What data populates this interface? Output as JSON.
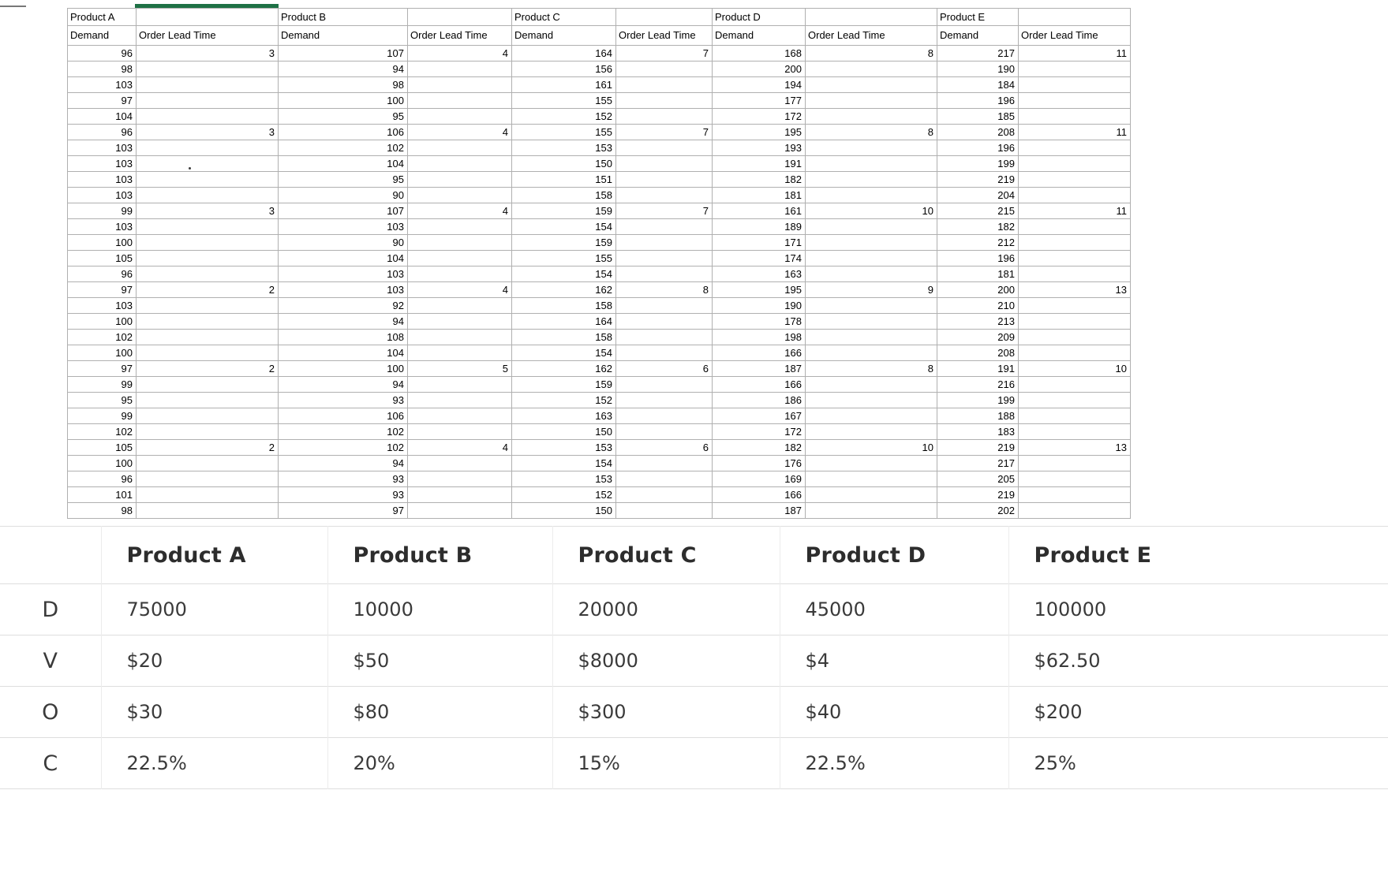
{
  "colors": {
    "selection_green": "#1e7145",
    "grid_line": "#b0b0b0",
    "summary_border": "#dedede",
    "sheet_text": "#000000",
    "summary_text": "#3a3a3a"
  },
  "spreadsheet": {
    "products": [
      {
        "name": "Product A",
        "demand_header": "Demand",
        "lead_header": "Order Lead Time",
        "demand": [
          96,
          98,
          103,
          97,
          104,
          96,
          103,
          103,
          103,
          103,
          99,
          103,
          100,
          105,
          96,
          97,
          103,
          100,
          102,
          100,
          97,
          99,
          95,
          99,
          102,
          105,
          100,
          96,
          101,
          98
        ],
        "lead": [
          3,
          "",
          "",
          "",
          "",
          3,
          "",
          "",
          "",
          "",
          3,
          "",
          "",
          "",
          "",
          2,
          "",
          "",
          "",
          "",
          2,
          "",
          "",
          "",
          "",
          2,
          "",
          "",
          "",
          ""
        ]
      },
      {
        "name": "Product B",
        "demand_header": "Demand",
        "lead_header": "Order Lead Time",
        "demand": [
          107,
          94,
          98,
          100,
          95,
          106,
          102,
          104,
          95,
          90,
          107,
          103,
          90,
          104,
          103,
          103,
          92,
          94,
          108,
          104,
          100,
          94,
          93,
          106,
          102,
          102,
          94,
          93,
          93,
          97
        ],
        "lead": [
          4,
          "",
          "",
          "",
          "",
          4,
          "",
          "",
          "",
          "",
          4,
          "",
          "",
          "",
          "",
          4,
          "",
          "",
          "",
          "",
          5,
          "",
          "",
          "",
          "",
          4,
          "",
          "",
          "",
          ""
        ]
      },
      {
        "name": "Product C",
        "demand_header": "Demand",
        "lead_header": "Order Lead Time",
        "demand": [
          164,
          156,
          161,
          155,
          152,
          155,
          153,
          150,
          151,
          158,
          159,
          154,
          159,
          155,
          154,
          162,
          158,
          164,
          158,
          154,
          162,
          159,
          152,
          163,
          150,
          153,
          154,
          153,
          152,
          150
        ],
        "lead": [
          7,
          "",
          "",
          "",
          "",
          7,
          "",
          "",
          "",
          "",
          7,
          "",
          "",
          "",
          "",
          8,
          "",
          "",
          "",
          "",
          6,
          "",
          "",
          "",
          "",
          6,
          "",
          "",
          "",
          ""
        ]
      },
      {
        "name": "Product D",
        "demand_header": "Demand",
        "lead_header": "Order Lead Time",
        "demand": [
          168,
          200,
          194,
          177,
          172,
          195,
          193,
          191,
          182,
          181,
          161,
          189,
          171,
          174,
          163,
          195,
          190,
          178,
          198,
          166,
          187,
          166,
          186,
          167,
          172,
          182,
          176,
          169,
          166,
          187
        ],
        "lead": [
          8,
          "",
          "",
          "",
          "",
          8,
          "",
          "",
          "",
          "",
          10,
          "",
          "",
          "",
          "",
          9,
          "",
          "",
          "",
          "",
          8,
          "",
          "",
          "",
          "",
          10,
          "",
          "",
          "",
          ""
        ]
      },
      {
        "name": "Product E",
        "demand_header": "Demand",
        "lead_header": "Order Lead Time",
        "demand": [
          217,
          190,
          184,
          196,
          185,
          208,
          196,
          199,
          219,
          204,
          215,
          182,
          212,
          196,
          181,
          200,
          210,
          213,
          209,
          208,
          191,
          216,
          199,
          188,
          183,
          219,
          217,
          205,
          219,
          202
        ],
        "lead": [
          11,
          "",
          "",
          "",
          "",
          11,
          "",
          "",
          "",
          "",
          11,
          "",
          "",
          "",
          "",
          13,
          "",
          "",
          "",
          "",
          10,
          "",
          "",
          "",
          "",
          13,
          "",
          "",
          "",
          ""
        ]
      }
    ]
  },
  "summary": {
    "columns": [
      "Product A",
      "Product B",
      "Product C",
      "Product D",
      "Product E"
    ],
    "rows": [
      {
        "label": "D",
        "values": [
          "75000",
          "10000",
          "20000",
          "45000",
          "100000"
        ]
      },
      {
        "label": "V",
        "values": [
          "$20",
          "$50",
          "$8000",
          "$4",
          "$62.50"
        ]
      },
      {
        "label": "O",
        "values": [
          "$30",
          "$80",
          "$300",
          "$40",
          "$200"
        ]
      },
      {
        "label": "C",
        "values": [
          "22.5%",
          "20%",
          "15%",
          "22.5%",
          "25%"
        ]
      }
    ]
  }
}
